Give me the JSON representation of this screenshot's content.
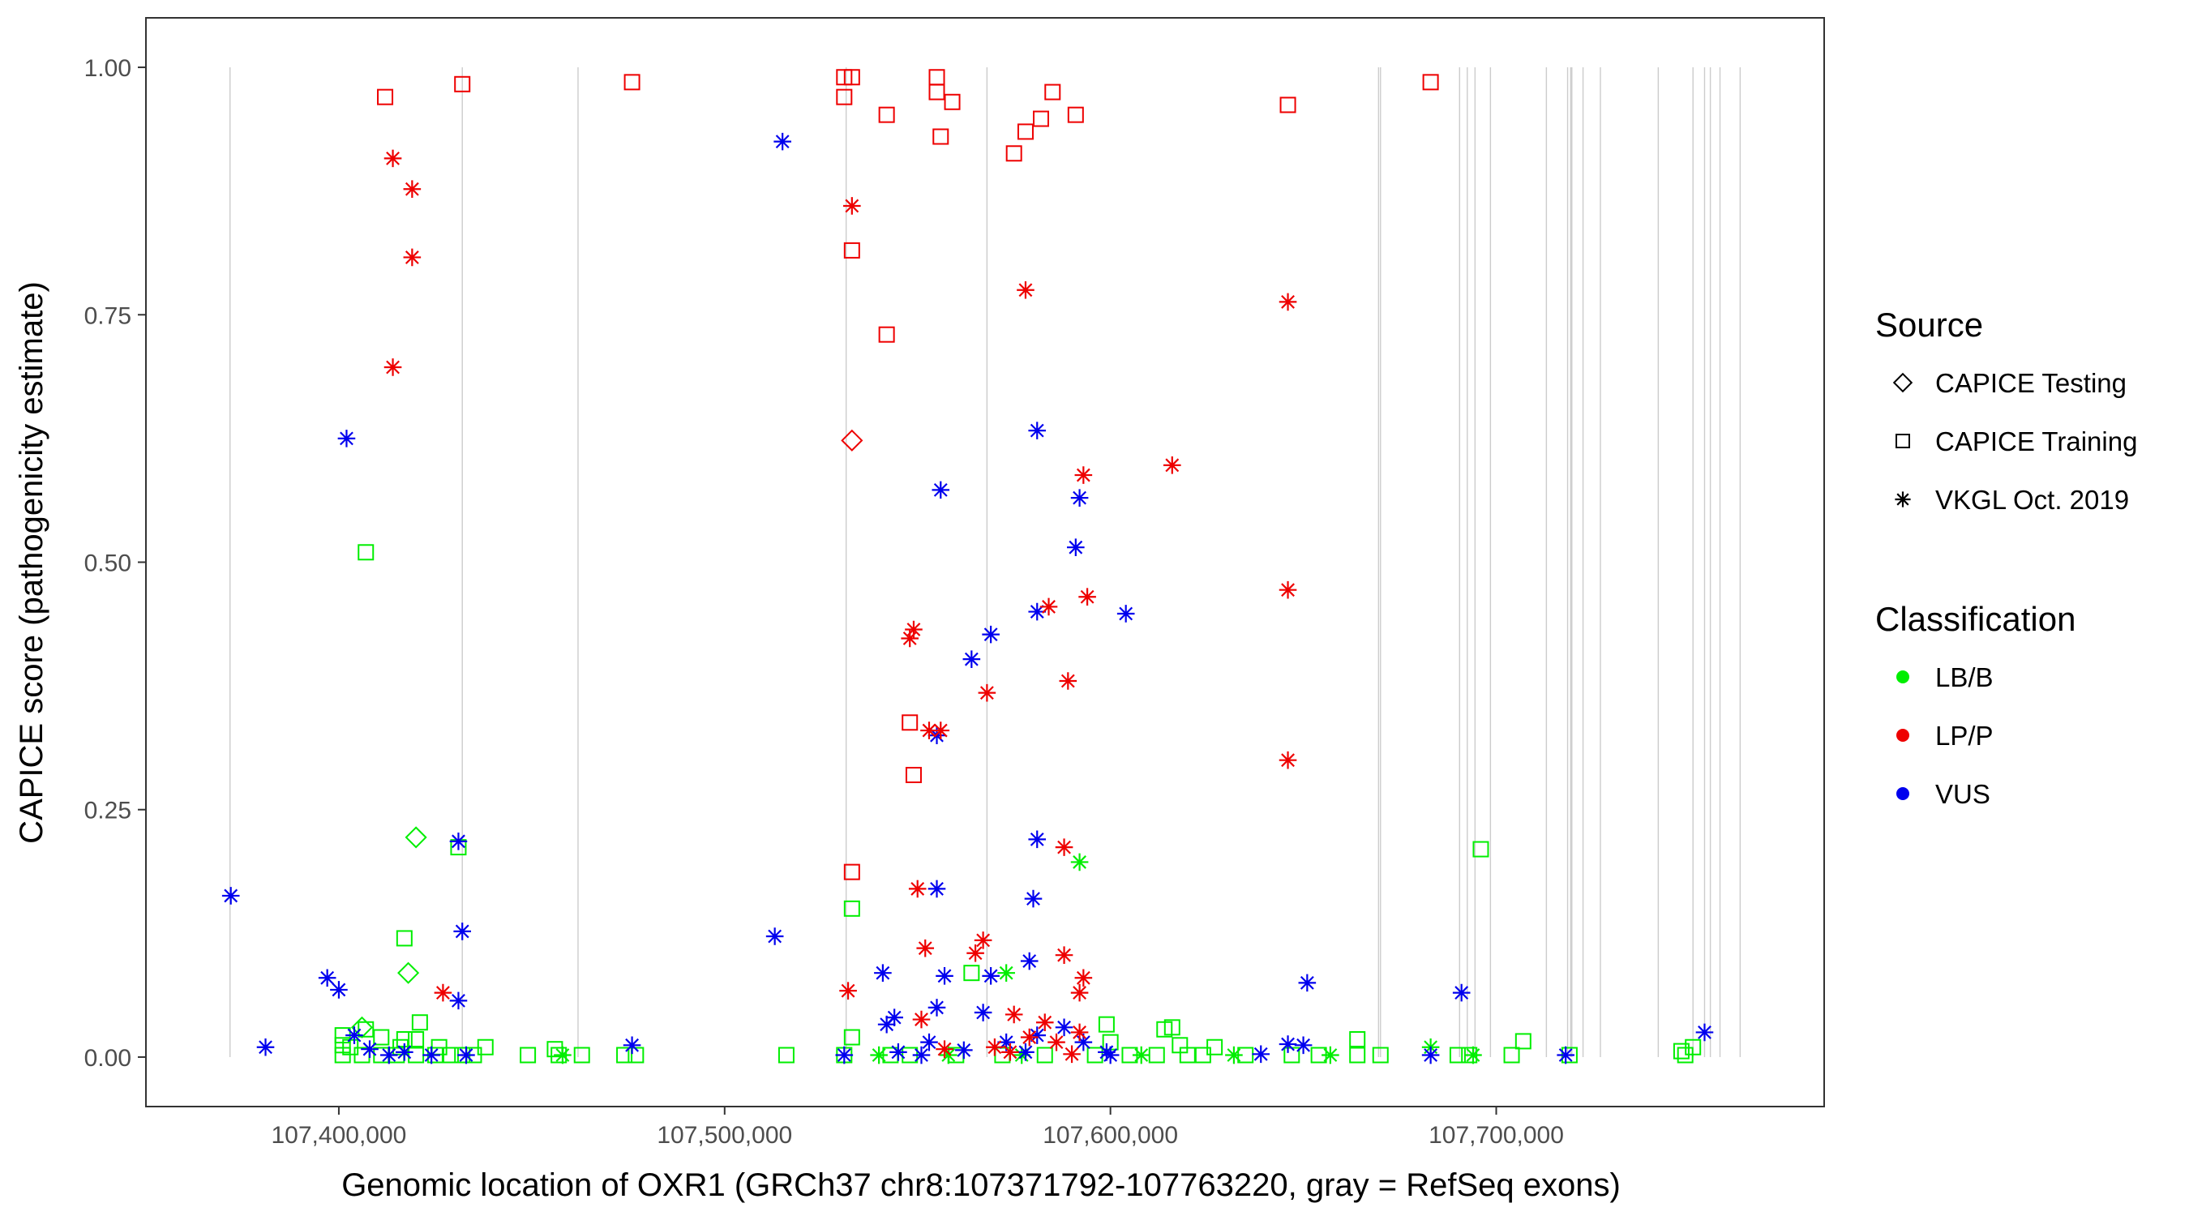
{
  "chart_data": {
    "type": "scatter",
    "xlabel": "Genomic location of OXR1 (GRCh37 chr8:107371792-107763220, gray = RefSeq exons)",
    "ylabel": "CAPICE score (pathogenicity estimate)",
    "xlim": [
      107350000,
      107785000
    ],
    "ylim": [
      -0.05,
      1.05
    ],
    "x_ticks": [
      107400000,
      107500000,
      107600000,
      107700000
    ],
    "x_tick_labels": [
      "107,400,000",
      "107,500,000",
      "107,600,000",
      "107,700,000"
    ],
    "y_ticks": [
      0,
      0.25,
      0.5,
      0.75,
      1.0
    ],
    "y_tick_labels": [
      "0.00",
      "0.25",
      "0.50",
      "0.75",
      "1.00"
    ],
    "exons": [
      107371792,
      107432000,
      107462000,
      107531500,
      107568000,
      107669500,
      107670000,
      107690500,
      107692500,
      107694500,
      107698500,
      107713000,
      107718500,
      107719300,
      107719600,
      107722500,
      107727000,
      107742000,
      107751000,
      107754000,
      107755500,
      107758000,
      107763220
    ],
    "legend": {
      "source_title": "Source",
      "source": [
        {
          "label": "CAPICE Testing",
          "shape": "diamond"
        },
        {
          "label": "CAPICE Training",
          "shape": "square"
        },
        {
          "label": "VKGL Oct. 2019",
          "shape": "asterisk"
        }
      ],
      "class_title": "Classification",
      "classes": [
        {
          "label": "LB/B",
          "color": "#00ee00"
        },
        {
          "label": "LP/P",
          "color": "#ee0000"
        },
        {
          "label": "VUS",
          "color": "#0000ee"
        }
      ]
    },
    "points": [
      [
        107412000,
        0.97,
        "square",
        "LP/P"
      ],
      [
        107432000,
        0.983,
        "square",
        "LP/P"
      ],
      [
        107476000,
        0.985,
        "square",
        "LP/P"
      ],
      [
        107531000,
        0.99,
        "square",
        "LP/P"
      ],
      [
        107533000,
        0.99,
        "square",
        "LP/P"
      ],
      [
        107531000,
        0.97,
        "square",
        "LP/P"
      ],
      [
        107555000,
        0.99,
        "square",
        "LP/P"
      ],
      [
        107555000,
        0.975,
        "square",
        "LP/P"
      ],
      [
        107559000,
        0.965,
        "square",
        "LP/P"
      ],
      [
        107542000,
        0.952,
        "square",
        "LP/P"
      ],
      [
        107585000,
        0.975,
        "square",
        "LP/P"
      ],
      [
        107591000,
        0.952,
        "square",
        "LP/P"
      ],
      [
        107582000,
        0.948,
        "square",
        "LP/P"
      ],
      [
        107578000,
        0.935,
        "square",
        "LP/P"
      ],
      [
        107556000,
        0.93,
        "square",
        "LP/P"
      ],
      [
        107575000,
        0.913,
        "square",
        "LP/P"
      ],
      [
        107646000,
        0.962,
        "square",
        "LP/P"
      ],
      [
        107683000,
        0.985,
        "square",
        "LP/P"
      ],
      [
        107533000,
        0.815,
        "square",
        "LP/P"
      ],
      [
        107542000,
        0.73,
        "square",
        "LP/P"
      ],
      [
        107548000,
        0.338,
        "square",
        "LP/P"
      ],
      [
        107549000,
        0.285,
        "square",
        "LP/P"
      ],
      [
        107533000,
        0.187,
        "square",
        "LP/P"
      ],
      [
        107414000,
        0.908,
        "asterisk",
        "LP/P"
      ],
      [
        107419000,
        0.877,
        "asterisk",
        "LP/P"
      ],
      [
        107419000,
        0.808,
        "asterisk",
        "LP/P"
      ],
      [
        107414000,
        0.697,
        "asterisk",
        "LP/P"
      ],
      [
        107427000,
        0.065,
        "asterisk",
        "LP/P"
      ],
      [
        107533000,
        0.86,
        "asterisk",
        "LP/P"
      ],
      [
        107578000,
        0.775,
        "asterisk",
        "LP/P"
      ],
      [
        107646000,
        0.763,
        "asterisk",
        "LP/P"
      ],
      [
        107646000,
        0.472,
        "asterisk",
        "LP/P"
      ],
      [
        107646000,
        0.3,
        "asterisk",
        "LP/P"
      ],
      [
        107616000,
        0.598,
        "asterisk",
        "LP/P"
      ],
      [
        107593000,
        0.588,
        "asterisk",
        "LP/P"
      ],
      [
        107594000,
        0.465,
        "asterisk",
        "LP/P"
      ],
      [
        107584000,
        0.455,
        "asterisk",
        "LP/P"
      ],
      [
        107549000,
        0.432,
        "asterisk",
        "LP/P"
      ],
      [
        107548000,
        0.423,
        "asterisk",
        "LP/P"
      ],
      [
        107589000,
        0.38,
        "asterisk",
        "LP/P"
      ],
      [
        107568000,
        0.368,
        "asterisk",
        "LP/P"
      ],
      [
        107553000,
        0.33,
        "asterisk",
        "LP/P"
      ],
      [
        107556000,
        0.33,
        "asterisk",
        "LP/P"
      ],
      [
        107588000,
        0.212,
        "asterisk",
        "LP/P"
      ],
      [
        107550000,
        0.17,
        "asterisk",
        "LP/P"
      ],
      [
        107567000,
        0.118,
        "asterisk",
        "LP/P"
      ],
      [
        107552000,
        0.11,
        "asterisk",
        "LP/P"
      ],
      [
        107565000,
        0.105,
        "asterisk",
        "LP/P"
      ],
      [
        107588000,
        0.103,
        "asterisk",
        "LP/P"
      ],
      [
        107532000,
        0.067,
        "asterisk",
        "LP/P"
      ],
      [
        107593000,
        0.08,
        "asterisk",
        "LP/P"
      ],
      [
        107592000,
        0.065,
        "asterisk",
        "LP/P"
      ],
      [
        107575000,
        0.043,
        "asterisk",
        "LP/P"
      ],
      [
        107551000,
        0.038,
        "asterisk",
        "LP/P"
      ],
      [
        107583000,
        0.035,
        "asterisk",
        "LP/P"
      ],
      [
        107592000,
        0.025,
        "asterisk",
        "LP/P"
      ],
      [
        107579000,
        0.02,
        "asterisk",
        "LP/P"
      ],
      [
        107586000,
        0.015,
        "asterisk",
        "LP/P"
      ],
      [
        107570000,
        0.01,
        "asterisk",
        "LP/P"
      ],
      [
        107557000,
        0.008,
        "asterisk",
        "LP/P"
      ],
      [
        107574000,
        0.005,
        "asterisk",
        "LP/P"
      ],
      [
        107590000,
        0.003,
        "asterisk",
        "LP/P"
      ],
      [
        107533000,
        0.623,
        "diamond",
        "LP/P"
      ],
      [
        107515000,
        0.925,
        "asterisk",
        "VUS"
      ],
      [
        107402000,
        0.625,
        "asterisk",
        "VUS"
      ],
      [
        107581000,
        0.633,
        "asterisk",
        "VUS"
      ],
      [
        107556000,
        0.573,
        "asterisk",
        "VUS"
      ],
      [
        107592000,
        0.565,
        "asterisk",
        "VUS"
      ],
      [
        107591000,
        0.515,
        "asterisk",
        "VUS"
      ],
      [
        107581000,
        0.45,
        "asterisk",
        "VUS"
      ],
      [
        107604000,
        0.448,
        "asterisk",
        "VUS"
      ],
      [
        107569000,
        0.427,
        "asterisk",
        "VUS"
      ],
      [
        107564000,
        0.402,
        "asterisk",
        "VUS"
      ],
      [
        107555000,
        0.325,
        "asterisk",
        "VUS"
      ],
      [
        107431000,
        0.218,
        "asterisk",
        "VUS"
      ],
      [
        107581000,
        0.22,
        "asterisk",
        "VUS"
      ],
      [
        107372000,
        0.163,
        "asterisk",
        "VUS"
      ],
      [
        107555000,
        0.17,
        "asterisk",
        "VUS"
      ],
      [
        107580000,
        0.16,
        "asterisk",
        "VUS"
      ],
      [
        107432000,
        0.127,
        "asterisk",
        "VUS"
      ],
      [
        107513000,
        0.122,
        "asterisk",
        "VUS"
      ],
      [
        107579000,
        0.097,
        "asterisk",
        "VUS"
      ],
      [
        107397000,
        0.08,
        "asterisk",
        "VUS"
      ],
      [
        107541000,
        0.085,
        "asterisk",
        "VUS"
      ],
      [
        107557000,
        0.082,
        "asterisk",
        "VUS"
      ],
      [
        107569000,
        0.082,
        "asterisk",
        "VUS"
      ],
      [
        107400000,
        0.068,
        "asterisk",
        "VUS"
      ],
      [
        107431000,
        0.057,
        "asterisk",
        "VUS"
      ],
      [
        107651000,
        0.075,
        "asterisk",
        "VUS"
      ],
      [
        107691000,
        0.065,
        "asterisk",
        "VUS"
      ],
      [
        107555000,
        0.05,
        "asterisk",
        "VUS"
      ],
      [
        107567000,
        0.045,
        "asterisk",
        "VUS"
      ],
      [
        107544000,
        0.04,
        "asterisk",
        "VUS"
      ],
      [
        107542000,
        0.033,
        "asterisk",
        "VUS"
      ],
      [
        107588000,
        0.03,
        "asterisk",
        "VUS"
      ],
      [
        107754000,
        0.025,
        "asterisk",
        "VUS"
      ],
      [
        107404000,
        0.022,
        "asterisk",
        "VUS"
      ],
      [
        107581000,
        0.022,
        "asterisk",
        "VUS"
      ],
      [
        107553000,
        0.015,
        "asterisk",
        "VUS"
      ],
      [
        107573000,
        0.015,
        "asterisk",
        "VUS"
      ],
      [
        107593000,
        0.015,
        "asterisk",
        "VUS"
      ],
      [
        107646000,
        0.013,
        "asterisk",
        "VUS"
      ],
      [
        107650000,
        0.012,
        "asterisk",
        "VUS"
      ],
      [
        107381000,
        0.01,
        "asterisk",
        "VUS"
      ],
      [
        107476000,
        0.012,
        "asterisk",
        "VUS"
      ],
      [
        107408000,
        0.008,
        "asterisk",
        "VUS"
      ],
      [
        107417000,
        0.005,
        "asterisk",
        "VUS"
      ],
      [
        107545000,
        0.005,
        "asterisk",
        "VUS"
      ],
      [
        107562000,
        0.007,
        "asterisk",
        "VUS"
      ],
      [
        107578000,
        0.005,
        "asterisk",
        "VUS"
      ],
      [
        107599000,
        0.005,
        "asterisk",
        "VUS"
      ],
      [
        107413000,
        0.002,
        "asterisk",
        "VUS"
      ],
      [
        107424000,
        0.002,
        "asterisk",
        "VUS"
      ],
      [
        107433000,
        0.002,
        "asterisk",
        "VUS"
      ],
      [
        107531000,
        0.002,
        "asterisk",
        "VUS"
      ],
      [
        107551000,
        0.002,
        "asterisk",
        "VUS"
      ],
      [
        107600000,
        0.002,
        "asterisk",
        "VUS"
      ],
      [
        107639000,
        0.003,
        "asterisk",
        "VUS"
      ],
      [
        107683000,
        0.002,
        "asterisk",
        "VUS"
      ],
      [
        107718000,
        0.002,
        "asterisk",
        "VUS"
      ],
      [
        107407000,
        0.51,
        "square",
        "LB/B"
      ],
      [
        107696000,
        0.21,
        "square",
        "LB/B"
      ],
      [
        107431000,
        0.212,
        "square",
        "LB/B"
      ],
      [
        107533000,
        0.15,
        "square",
        "LB/B"
      ],
      [
        107417000,
        0.12,
        "square",
        "LB/B"
      ],
      [
        107564000,
        0.085,
        "square",
        "LB/B"
      ],
      [
        107421000,
        0.035,
        "square",
        "LB/B"
      ],
      [
        107599000,
        0.033,
        "square",
        "LB/B"
      ],
      [
        107616000,
        0.03,
        "square",
        "LB/B"
      ],
      [
        107407000,
        0.028,
        "square",
        "LB/B"
      ],
      [
        107401000,
        0.022,
        "square",
        "LB/B"
      ],
      [
        107411000,
        0.02,
        "square",
        "LB/B"
      ],
      [
        107533000,
        0.02,
        "square",
        "LB/B"
      ],
      [
        107417000,
        0.018,
        "square",
        "LB/B"
      ],
      [
        107420000,
        0.018,
        "square",
        "LB/B"
      ],
      [
        107614000,
        0.028,
        "square",
        "LB/B"
      ],
      [
        107664000,
        0.018,
        "square",
        "LB/B"
      ],
      [
        107707000,
        0.016,
        "square",
        "LB/B"
      ],
      [
        107401000,
        0.012,
        "square",
        "LB/B"
      ],
      [
        107403000,
        0.01,
        "square",
        "LB/B"
      ],
      [
        107416000,
        0.01,
        "square",
        "LB/B"
      ],
      [
        107426000,
        0.01,
        "square",
        "LB/B"
      ],
      [
        107438000,
        0.01,
        "square",
        "LB/B"
      ],
      [
        107456000,
        0.008,
        "square",
        "LB/B"
      ],
      [
        107600000,
        0.015,
        "square",
        "LB/B"
      ],
      [
        107618000,
        0.012,
        "square",
        "LB/B"
      ],
      [
        107627000,
        0.01,
        "square",
        "LB/B"
      ],
      [
        107751000,
        0.01,
        "square",
        "LB/B"
      ],
      [
        107748000,
        0.006,
        "square",
        "LB/B"
      ],
      [
        107401000,
        0.002,
        "square",
        "LB/B"
      ],
      [
        107406000,
        0.002,
        "square",
        "LB/B"
      ],
      [
        107411000,
        0.002,
        "square",
        "LB/B"
      ],
      [
        107415000,
        0.002,
        "square",
        "LB/B"
      ],
      [
        107420000,
        0.002,
        "square",
        "LB/B"
      ],
      [
        107425000,
        0.002,
        "square",
        "LB/B"
      ],
      [
        107429000,
        0.002,
        "square",
        "LB/B"
      ],
      [
        107432000,
        0.002,
        "square",
        "LB/B"
      ],
      [
        107435000,
        0.002,
        "square",
        "LB/B"
      ],
      [
        107449000,
        0.002,
        "square",
        "LB/B"
      ],
      [
        107457000,
        0.002,
        "square",
        "LB/B"
      ],
      [
        107463000,
        0.002,
        "square",
        "LB/B"
      ],
      [
        107474000,
        0.002,
        "square",
        "LB/B"
      ],
      [
        107477000,
        0.002,
        "square",
        "LB/B"
      ],
      [
        107516000,
        0.002,
        "square",
        "LB/B"
      ],
      [
        107531000,
        0.002,
        "square",
        "LB/B"
      ],
      [
        107543000,
        0.002,
        "square",
        "LB/B"
      ],
      [
        107548000,
        0.002,
        "square",
        "LB/B"
      ],
      [
        107560000,
        0.002,
        "square",
        "LB/B"
      ],
      [
        107572000,
        0.002,
        "square",
        "LB/B"
      ],
      [
        107583000,
        0.002,
        "square",
        "LB/B"
      ],
      [
        107596000,
        0.002,
        "square",
        "LB/B"
      ],
      [
        107605000,
        0.002,
        "square",
        "LB/B"
      ],
      [
        107612000,
        0.002,
        "square",
        "LB/B"
      ],
      [
        107620000,
        0.002,
        "square",
        "LB/B"
      ],
      [
        107624000,
        0.002,
        "square",
        "LB/B"
      ],
      [
        107635000,
        0.002,
        "square",
        "LB/B"
      ],
      [
        107647000,
        0.002,
        "square",
        "LB/B"
      ],
      [
        107654000,
        0.002,
        "square",
        "LB/B"
      ],
      [
        107664000,
        0.002,
        "square",
        "LB/B"
      ],
      [
        107670000,
        0.002,
        "square",
        "LB/B"
      ],
      [
        107690000,
        0.002,
        "square",
        "LB/B"
      ],
      [
        107693000,
        0.002,
        "square",
        "LB/B"
      ],
      [
        107704000,
        0.002,
        "square",
        "LB/B"
      ],
      [
        107719000,
        0.002,
        "square",
        "LB/B"
      ],
      [
        107749000,
        0.002,
        "square",
        "LB/B"
      ],
      [
        107420000,
        0.222,
        "diamond",
        "LB/B"
      ],
      [
        107418000,
        0.085,
        "diamond",
        "LB/B"
      ],
      [
        107406000,
        0.03,
        "diamond",
        "LB/B"
      ],
      [
        107592000,
        0.197,
        "asterisk",
        "LB/B"
      ],
      [
        107573000,
        0.085,
        "asterisk",
        "LB/B"
      ],
      [
        107683000,
        0.01,
        "asterisk",
        "LB/B"
      ],
      [
        107458000,
        0.002,
        "asterisk",
        "LB/B"
      ],
      [
        107540000,
        0.002,
        "asterisk",
        "LB/B"
      ],
      [
        107558000,
        0.002,
        "asterisk",
        "LB/B"
      ],
      [
        107577000,
        0.002,
        "asterisk",
        "LB/B"
      ],
      [
        107608000,
        0.002,
        "asterisk",
        "LB/B"
      ],
      [
        107632000,
        0.002,
        "asterisk",
        "LB/B"
      ],
      [
        107657000,
        0.002,
        "asterisk",
        "LB/B"
      ],
      [
        107694000,
        0.002,
        "asterisk",
        "LB/B"
      ]
    ]
  }
}
